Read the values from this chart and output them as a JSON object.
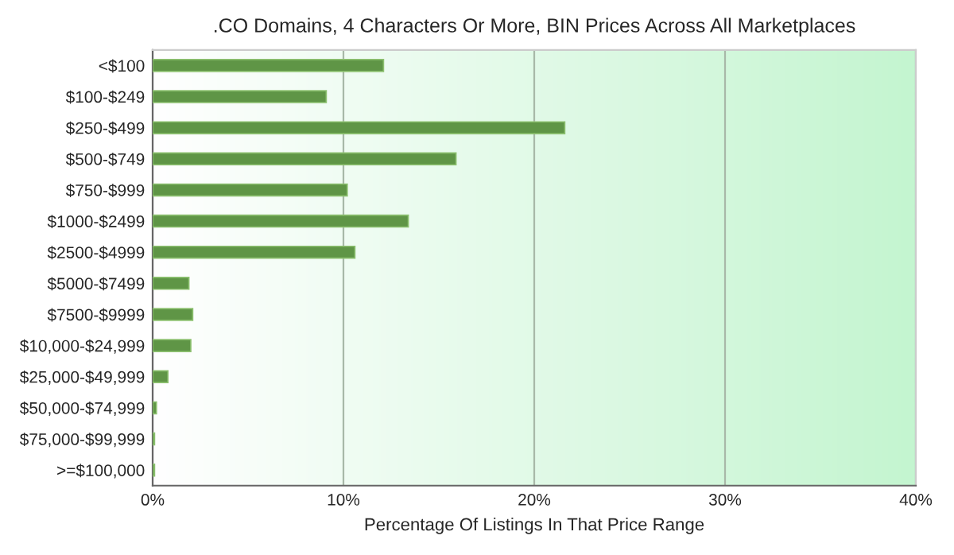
{
  "chart_data": {
    "type": "bar",
    "orientation": "horizontal",
    "title": ".CO Domains, 4 Characters Or More, BIN Prices Across All Marketplaces",
    "xlabel": "Percentage Of Listings In That Price Range",
    "categories": [
      "<$100",
      "$100-$249",
      "$250-$499",
      "$500-$749",
      "$750-$999",
      "$1000-$2499",
      "$2500-$4999",
      "$5000-$7499",
      "$7500-$9999",
      "$10,000-$24,999",
      "$25,000-$49,999",
      "$50,000-$74,999",
      "$75,000-$99,999",
      ">=$100,000"
    ],
    "values": [
      12.1,
      9.1,
      21.6,
      15.9,
      10.2,
      13.4,
      10.6,
      1.9,
      2.1,
      2.0,
      0.8,
      0.2,
      0.1,
      0.1
    ],
    "color": "#5f9546",
    "xlim": [
      0,
      40
    ],
    "xticks": [
      {
        "value": 0,
        "label": "0%"
      },
      {
        "value": 10,
        "label": "10%"
      },
      {
        "value": 20,
        "label": "20%"
      },
      {
        "value": 30,
        "label": "30%"
      },
      {
        "value": 40,
        "label": "40%"
      }
    ],
    "grid": "x",
    "legend": false
  }
}
